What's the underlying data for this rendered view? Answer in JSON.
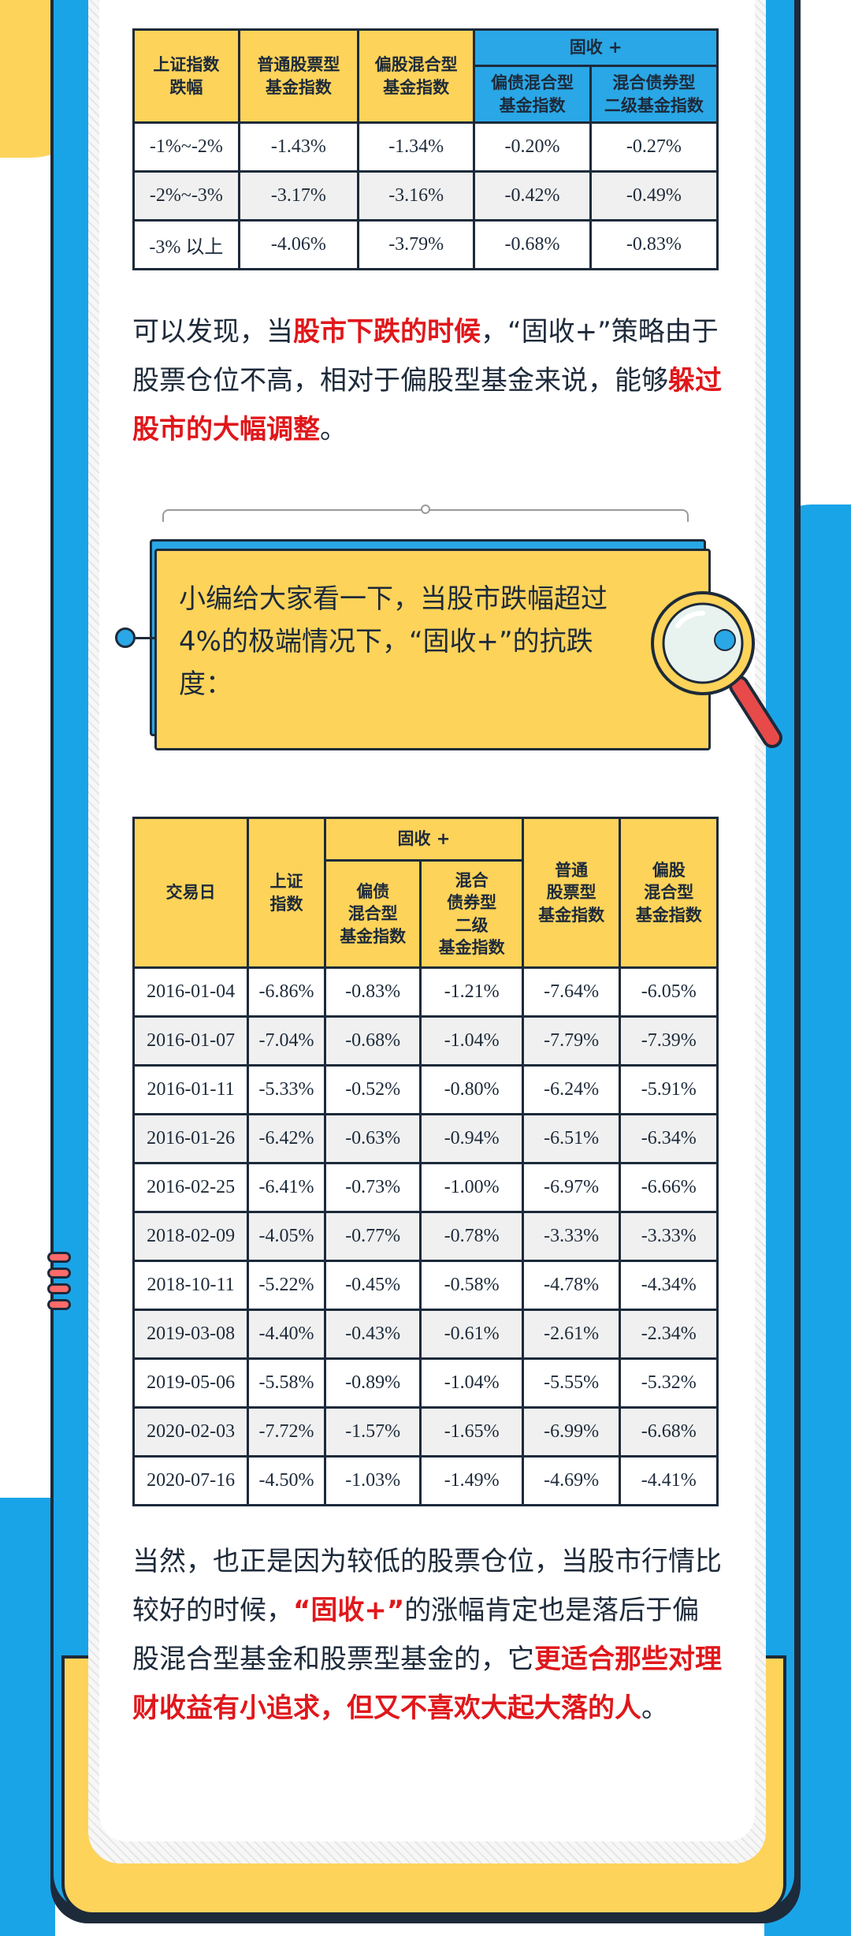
{
  "table1": {
    "headers": {
      "col1": "上证指数\n跌幅",
      "col2": "普通股票型\n基金指数",
      "col3": "偏股混合型\n基金指数",
      "group": "固收 +",
      "col4": "偏债混合型\n基金指数",
      "col5": "混合债券型\n二级基金指数"
    },
    "rows": [
      [
        "-1%~-2%",
        "-1.43%",
        "-1.34%",
        "-0.20%",
        "-0.27%"
      ],
      [
        "-2%~-3%",
        "-3.17%",
        "-3.16%",
        "-0.42%",
        "-0.49%"
      ],
      [
        "-3% 以上",
        "-4.06%",
        "-3.79%",
        "-0.68%",
        "-0.83%"
      ]
    ]
  },
  "paragraph1": {
    "a": "可以发现，当",
    "b": "股市下跌的时候",
    "c": "，“固收+”策略由于股票仓位不高，相对于偏股型基金来说，能够",
    "d": "躲过股市的大幅调整",
    "e": "。"
  },
  "callout": {
    "text": "小编给大家看一下，当股市跌幅超过4%的极端情况下，“固收+”的抗跌度："
  },
  "table2": {
    "headers": {
      "date": "交易日",
      "sh": "上证\n指数",
      "group": "固收 +",
      "bond_mixed": "偏债\n混合型\n基金指数",
      "bond2": "混合\n债券型\n二级\n基金指数",
      "stock": "普通\n股票型\n基金指数",
      "equity_mixed": "偏股\n混合型\n基金指数"
    },
    "rows": [
      [
        "2016-01-04",
        "-6.86%",
        "-0.83%",
        "-1.21%",
        "-7.64%",
        "-6.05%"
      ],
      [
        "2016-01-07",
        "-7.04%",
        "-0.68%",
        "-1.04%",
        "-7.79%",
        "-7.39%"
      ],
      [
        "2016-01-11",
        "-5.33%",
        "-0.52%",
        "-0.80%",
        "-6.24%",
        "-5.91%"
      ],
      [
        "2016-01-26",
        "-6.42%",
        "-0.63%",
        "-0.94%",
        "-6.51%",
        "-6.34%"
      ],
      [
        "2016-02-25",
        "-6.41%",
        "-0.73%",
        "-1.00%",
        "-6.97%",
        "-6.66%"
      ],
      [
        "2018-02-09",
        "-4.05%",
        "-0.77%",
        "-0.78%",
        "-3.33%",
        "-3.33%"
      ],
      [
        "2018-10-11",
        "-5.22%",
        "-0.45%",
        "-0.58%",
        "-4.78%",
        "-4.34%"
      ],
      [
        "2019-03-08",
        "-4.40%",
        "-0.43%",
        "-0.61%",
        "-2.61%",
        "-2.34%"
      ],
      [
        "2019-05-06",
        "-5.58%",
        "-0.89%",
        "-1.04%",
        "-5.55%",
        "-5.32%"
      ],
      [
        "2020-02-03",
        "-7.72%",
        "-1.57%",
        "-1.65%",
        "-6.99%",
        "-6.68%"
      ],
      [
        "2020-07-16",
        "-4.50%",
        "-1.03%",
        "-1.49%",
        "-4.69%",
        "-4.41%"
      ]
    ]
  },
  "paragraph3": {
    "a": "当然，也正是因为较低的股票仓位，当股市行情比较好的时候，",
    "b": "“固收+”",
    "c": "的涨幅肯定也是落后于偏股混合型基金和股票型基金的，它",
    "d": "更适合那些对理财收益有小追求，但又不喜欢大起大落的人",
    "e": "。"
  },
  "colors": {
    "yellow": "#fdd35a",
    "blue": "#1aa4e8",
    "red": "#e0171b",
    "dark": "#1d2a3a"
  },
  "icons": [
    "magnifier-icon"
  ]
}
